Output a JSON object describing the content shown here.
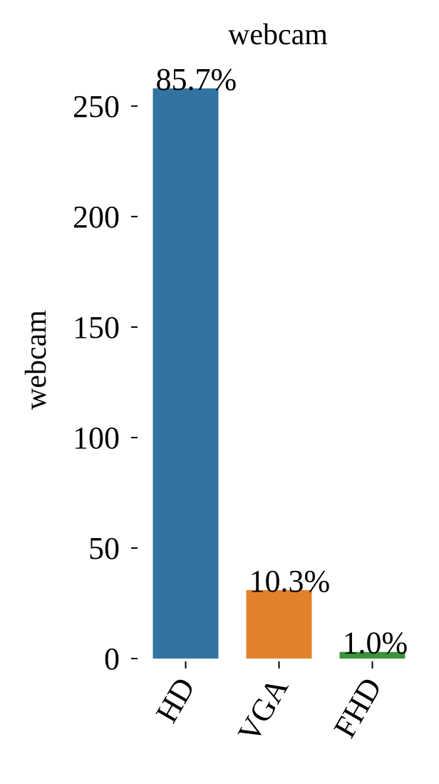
{
  "chart_data": {
    "type": "bar",
    "title": "webcam",
    "xlabel": "",
    "ylabel": "webcam",
    "categories": [
      "HD",
      "VGA",
      "FHD"
    ],
    "values": [
      258,
      31,
      3
    ],
    "data_labels": [
      "85.7%",
      "10.3%",
      "1.0%"
    ],
    "colors": [
      "#3274a1",
      "#e1812c",
      "#3a923a"
    ],
    "yticks": [
      0,
      50,
      100,
      150,
      200,
      250
    ],
    "ytick_labels": [
      "0",
      "50",
      "100",
      "150",
      "200",
      "250"
    ],
    "ylim": [
      0,
      258
    ],
    "grid": false,
    "legend": "none"
  }
}
